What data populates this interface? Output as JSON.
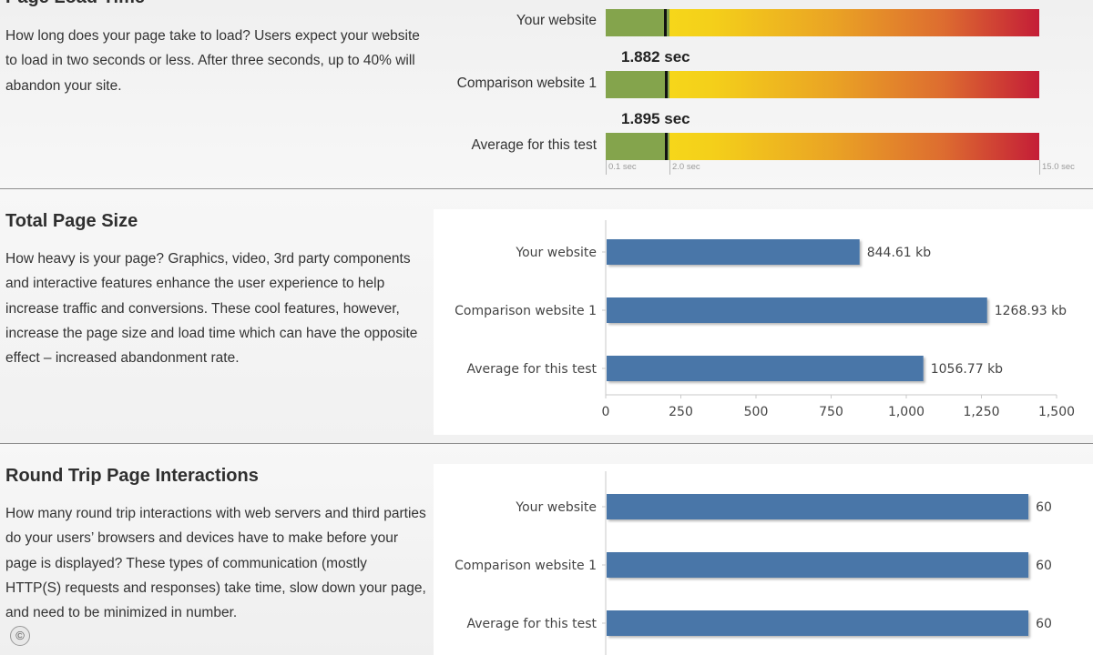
{
  "sections": {
    "load": {
      "title": "Page Load Time",
      "description": "How long does your page take to load? Users expect your website to load in two seconds or less. After three seconds, up to 40% will abandon your site."
    },
    "size": {
      "title": "Total Page Size",
      "description": "How heavy is your page? Graphics, video, 3rd party components and interactive features enhance the user experience to help increase traffic and conversions. These cool features, however, increase the page size and load time which can have the opposite effect – increased abandonment rate."
    },
    "trips": {
      "title": "Round Trip Page Interactions",
      "description": "How many round trip interactions with web servers and third parties do your users’ browsers and devices have to make before your page is displayed? These types of communication (mostly HTTP(S) requests and responses) take time, slow down your page, and need to be minimized in number."
    }
  },
  "footer": {
    "icon": "copyright-icon",
    "symbol": "©"
  },
  "colors": {
    "bar": "#4a76a8",
    "green_zone": "#84a44c",
    "marker": "#111111"
  },
  "chart_data": [
    {
      "type": "bar",
      "orientation": "horizontal-gauge",
      "title": "Page Load Time",
      "categories": [
        "Your website",
        "Comparison website 1",
        "Average for this test"
      ],
      "value_labels": [
        "",
        "1.882 sec",
        "1.895 sec"
      ],
      "values": [
        null,
        1.882,
        1.895
      ],
      "axis_ticks": [
        "0.1 sec",
        "2.0 sec",
        "15.0 sec"
      ],
      "xlim": [
        0.1,
        15.0
      ],
      "green_zone_max": 2.0
    },
    {
      "type": "bar",
      "orientation": "horizontal",
      "title": "Total Page Size",
      "categories": [
        "Your website",
        "Comparison website 1",
        "Average for this test"
      ],
      "values": [
        844.61,
        1268.93,
        1056.77
      ],
      "value_labels": [
        "844.61 kb",
        "1268.93 kb",
        "1056.77 kb"
      ],
      "xticks": [
        "0",
        "250",
        "500",
        "750",
        "1,000",
        "1,250",
        "1,500"
      ],
      "xlim": [
        0,
        1500
      ],
      "grid": false
    },
    {
      "type": "bar",
      "orientation": "horizontal",
      "title": "Round Trip Page Interactions",
      "categories": [
        "Your website",
        "Comparison website 1",
        "Average for this test"
      ],
      "values": [
        60,
        60,
        60
      ],
      "value_labels": [
        "60",
        "60",
        "60"
      ],
      "xlim": [
        0,
        64
      ],
      "grid": false
    }
  ]
}
